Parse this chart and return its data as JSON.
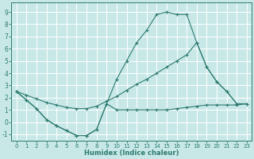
{
  "background_color": "#c8e8e8",
  "grid_color": "#ffffff",
  "line_color": "#2d7a6e",
  "xlabel": "Humidex (Indice chaleur)",
  "xlim": [
    -0.5,
    23.5
  ],
  "ylim": [
    -1.5,
    9.8
  ],
  "xticks": [
    0,
    1,
    2,
    3,
    4,
    5,
    6,
    7,
    8,
    9,
    10,
    11,
    12,
    13,
    14,
    15,
    16,
    17,
    18,
    19,
    20,
    21,
    22,
    23
  ],
  "yticks": [
    -1,
    0,
    1,
    2,
    3,
    4,
    5,
    6,
    7,
    8,
    9
  ],
  "series1_x": [
    0,
    1,
    2,
    3,
    4,
    5,
    6,
    7,
    8,
    9,
    10,
    11,
    12,
    13,
    14,
    15,
    16,
    17,
    18,
    19,
    20,
    21,
    22,
    23
  ],
  "series1_y": [
    2.5,
    1.8,
    1.1,
    0.2,
    -0.3,
    -0.7,
    -1.1,
    -1.1,
    -0.6,
    1.5,
    1.0,
    1.0,
    1.0,
    1.0,
    1.0,
    1.0,
    1.1,
    1.2,
    1.3,
    1.4,
    1.4,
    1.4,
    1.4,
    1.5
  ],
  "series2_x": [
    0,
    1,
    2,
    3,
    4,
    5,
    6,
    7,
    8,
    9,
    10,
    11,
    12,
    13,
    14,
    15,
    16,
    17,
    18,
    19,
    20,
    21,
    22
  ],
  "series2_y": [
    2.5,
    1.8,
    1.1,
    0.2,
    -0.3,
    -0.7,
    -1.1,
    -1.1,
    -0.6,
    1.5,
    3.5,
    5.0,
    6.5,
    7.5,
    8.8,
    9.0,
    8.8,
    8.8,
    6.5,
    4.5,
    3.3,
    2.5,
    1.5
  ],
  "series3_x": [
    0,
    1,
    2,
    3,
    4,
    5,
    6,
    7,
    8,
    9,
    10,
    11,
    12,
    13,
    14,
    15,
    16,
    17,
    18,
    19,
    20,
    21,
    22,
    23
  ],
  "series3_y": [
    2.5,
    2.2,
    1.9,
    1.6,
    1.4,
    1.2,
    1.1,
    1.1,
    1.3,
    1.7,
    2.1,
    2.6,
    3.1,
    3.5,
    4.0,
    4.5,
    5.0,
    5.5,
    6.5,
    4.5,
    3.3,
    2.5,
    1.5,
    1.5
  ]
}
